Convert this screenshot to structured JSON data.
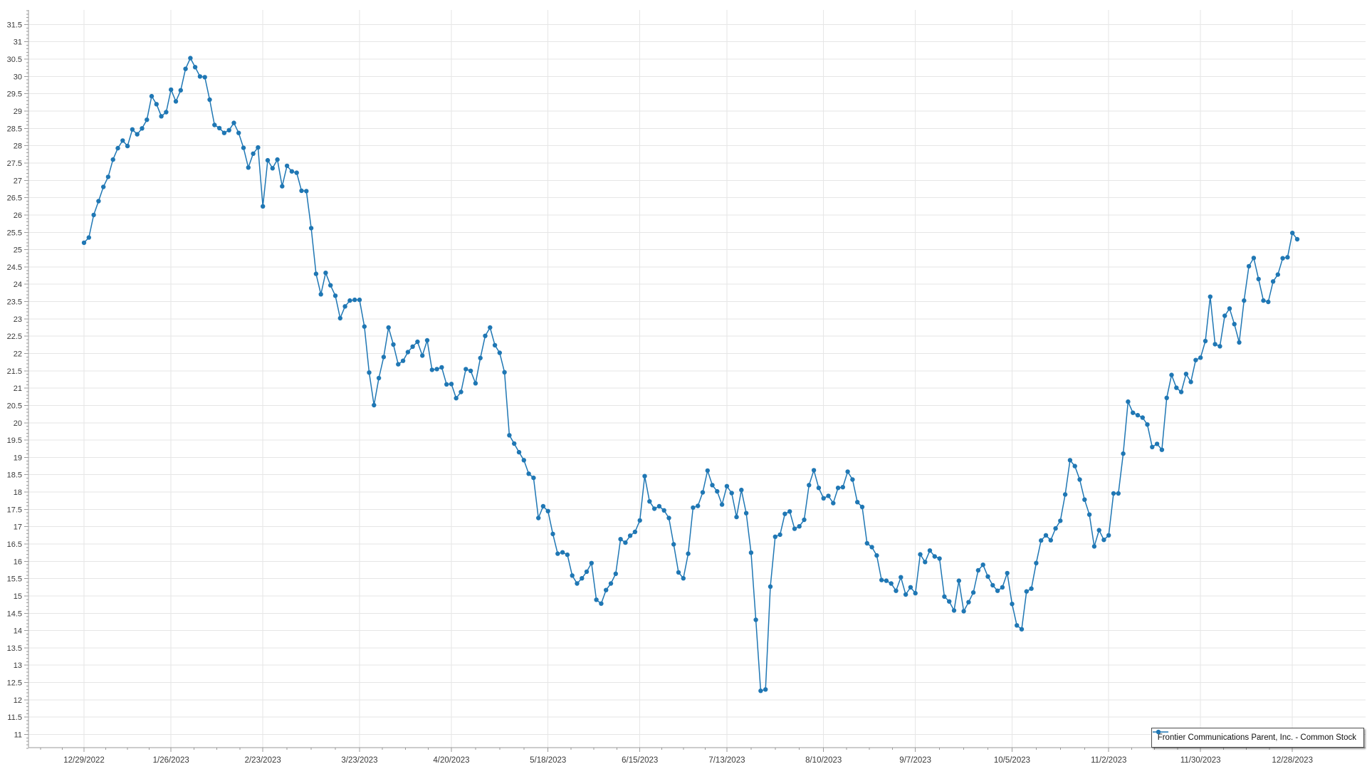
{
  "legend": {
    "series_label": "Frontier Communications Parent, Inc. - Common Stock"
  },
  "colors": {
    "series": "#1f77b4",
    "grid": "#e6e6e6",
    "axis": "#9a9a9a",
    "tick_label": "#3a3a3a",
    "background": "#ffffff"
  },
  "chart_data": {
    "type": "line",
    "title": "",
    "xlabel": "",
    "ylabel": "",
    "grid": true,
    "legend_position": "bottom-right",
    "marker": "circle",
    "y_tick_min": 11,
    "y_tick_max": 31.5,
    "y_tick_step": 0.5,
    "ylim": [
      10.62,
      31.92
    ],
    "x_tick_labels": [
      "12/29/2022",
      "1/26/2023",
      "2/23/2023",
      "3/23/2023",
      "4/20/2023",
      "5/18/2023",
      "6/15/2023",
      "7/13/2023",
      "8/10/2023",
      "9/7/2023",
      "10/5/2023",
      "11/2/2023",
      "11/30/2023",
      "12/28/2023"
    ],
    "x_tick_indices": [
      0,
      18,
      37,
      57,
      76,
      96,
      115,
      133,
      153,
      172,
      192,
      212,
      231,
      250
    ],
    "series": [
      {
        "name": "Frontier Communications Parent, Inc. - Common Stock",
        "color": "#1f77b4",
        "values": [
          25.2,
          25.35,
          26.0,
          26.4,
          26.81,
          27.1,
          27.6,
          27.93,
          28.15,
          27.99,
          28.47,
          28.33,
          28.5,
          28.75,
          29.43,
          29.2,
          28.85,
          28.97,
          29.62,
          29.28,
          29.6,
          30.22,
          30.53,
          30.27,
          30.0,
          29.98,
          29.33,
          28.6,
          28.51,
          28.37,
          28.45,
          28.66,
          28.37,
          27.94,
          27.37,
          27.77,
          27.95,
          26.25,
          27.58,
          27.35,
          27.6,
          26.83,
          27.42,
          27.26,
          27.22,
          26.7,
          26.69,
          25.62,
          24.3,
          23.71,
          24.33,
          23.97,
          23.67,
          23.02,
          23.36,
          23.53,
          23.55,
          23.55,
          22.78,
          21.45,
          20.51,
          21.29,
          21.9,
          22.75,
          22.26,
          21.69,
          21.79,
          22.04,
          22.2,
          22.34,
          21.94,
          22.38,
          21.53,
          21.55,
          21.6,
          21.11,
          21.12,
          20.71,
          20.89,
          21.55,
          21.5,
          21.14,
          21.87,
          22.51,
          22.75,
          22.24,
          22.02,
          21.46,
          19.64,
          19.4,
          19.15,
          18.92,
          18.53,
          18.41,
          17.25,
          17.59,
          17.45,
          16.79,
          16.22,
          16.26,
          16.19,
          15.59,
          15.36,
          15.51,
          15.7,
          15.95,
          14.89,
          14.78,
          15.17,
          15.36,
          15.64,
          16.64,
          16.54,
          16.74,
          16.85,
          17.18,
          18.46,
          17.73,
          17.52,
          17.59,
          17.47,
          17.25,
          16.49,
          15.68,
          15.51,
          16.22,
          17.55,
          17.6,
          17.99,
          18.62,
          18.2,
          18.02,
          17.64,
          18.17,
          17.97,
          17.28,
          18.06,
          17.39,
          16.25,
          14.31,
          12.26,
          12.3,
          15.27,
          16.71,
          16.77,
          17.37,
          17.44,
          16.94,
          17.01,
          17.2,
          18.2,
          18.63,
          18.12,
          17.82,
          17.89,
          17.68,
          18.12,
          18.14,
          18.59,
          18.36,
          17.71,
          17.57,
          16.52,
          16.41,
          16.17,
          15.46,
          15.44,
          15.36,
          15.15,
          15.54,
          15.04,
          15.25,
          15.08,
          16.2,
          15.98,
          16.31,
          16.14,
          16.08,
          14.98,
          14.84,
          14.58,
          15.44,
          14.56,
          14.82,
          15.1,
          15.74,
          15.9,
          15.56,
          15.31,
          15.15,
          15.25,
          15.66,
          14.77,
          14.15,
          14.04,
          15.13,
          15.21,
          15.95,
          16.6,
          16.75,
          16.61,
          16.95,
          17.17,
          17.93,
          18.92,
          18.75,
          18.36,
          17.78,
          17.35,
          16.43,
          16.9,
          16.62,
          16.75,
          17.96,
          17.96,
          19.11,
          20.61,
          20.29,
          20.22,
          20.15,
          19.95,
          19.3,
          19.39,
          19.22,
          20.72,
          21.38,
          21.01,
          20.89,
          21.41,
          21.18,
          21.81,
          21.88,
          22.36,
          23.64,
          22.27,
          22.21,
          23.09,
          23.3,
          22.85,
          22.32,
          23.53,
          24.52,
          24.76,
          24.15,
          23.53,
          23.49,
          24.08,
          24.28,
          24.75,
          24.78,
          25.48,
          25.3
        ]
      }
    ]
  }
}
